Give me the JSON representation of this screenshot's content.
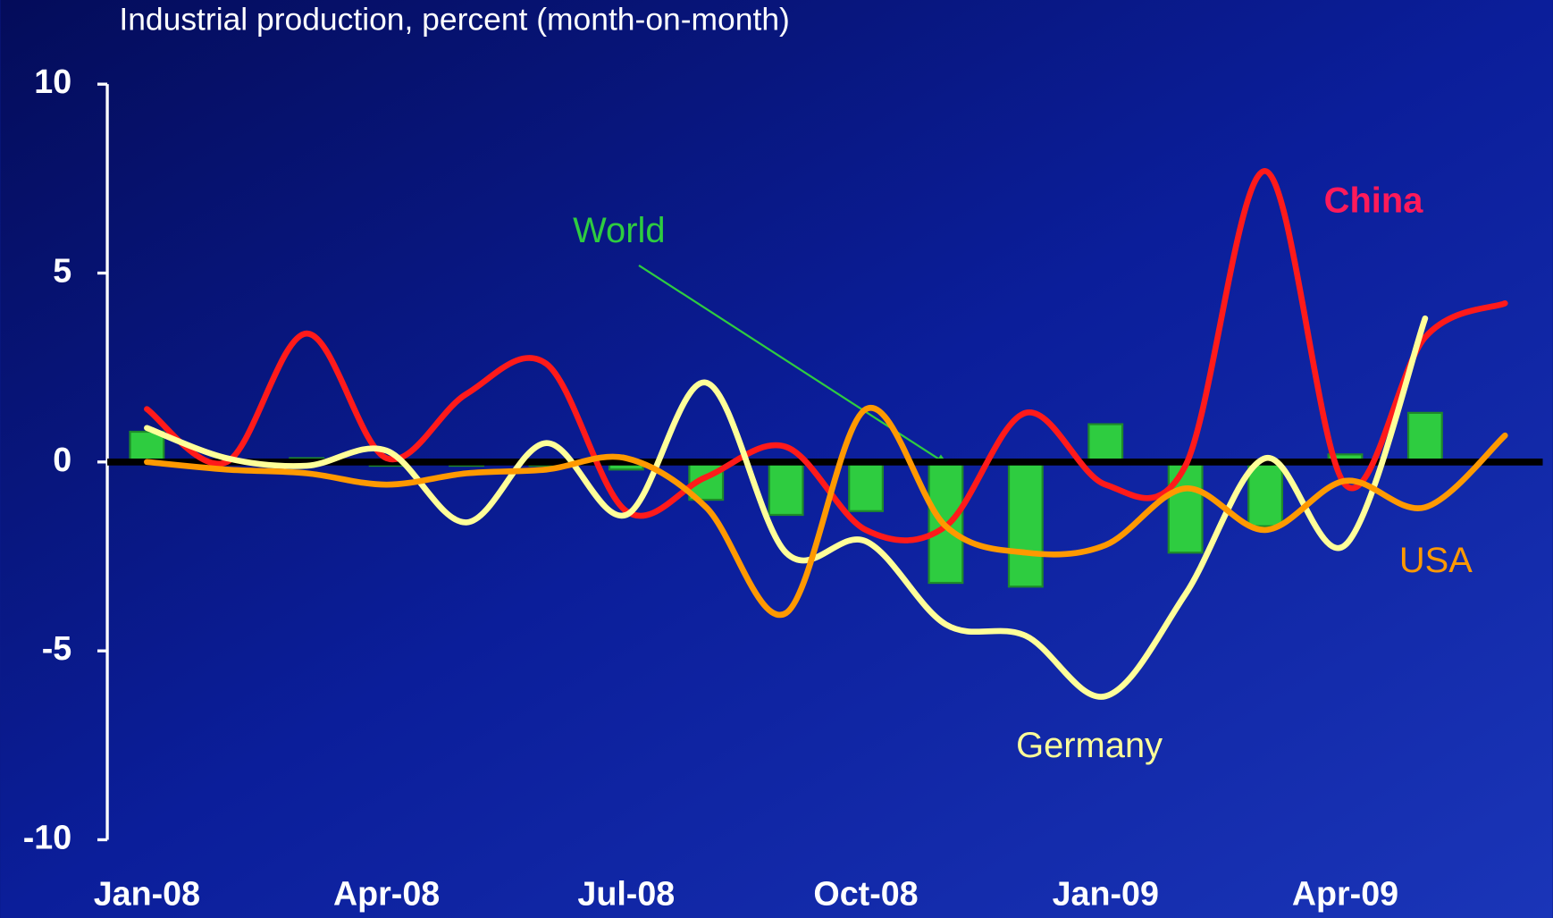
{
  "chart_data": {
    "type": "bar-line",
    "title": "Industrial production, percent (month-on-month)",
    "categories": [
      "Jan-08",
      null,
      null,
      "Apr-08",
      null,
      null,
      "Jul-08",
      null,
      null,
      "Oct-08",
      null,
      null,
      "Jan-09",
      null,
      null,
      "Apr-09",
      null,
      null
    ],
    "ylim": [
      -10,
      10
    ],
    "yticks": [
      -10,
      -5,
      0,
      5,
      10
    ],
    "series": [
      {
        "name": "World",
        "type": "bar",
        "color": "#2ecc40",
        "values": [
          0.8,
          0,
          0.1,
          -0.1,
          -0.1,
          -0.1,
          -0.2,
          -1.0,
          -1.4,
          -1.3,
          -3.2,
          -3.3,
          1.0,
          -2.4,
          -1.7,
          0.2,
          1.3,
          null
        ]
      },
      {
        "name": "China",
        "type": "line",
        "color": "#ff1a1a",
        "values": [
          1.4,
          0,
          3.4,
          0.1,
          1.8,
          2.6,
          -1.3,
          -0.4,
          0.4,
          -1.8,
          -1.7,
          1.3,
          -0.6,
          -0.1,
          7.7,
          -0.6,
          3.3,
          4.2
        ]
      },
      {
        "name": "Germany",
        "type": "line",
        "color": "#ffff99",
        "values": [
          0.9,
          0.1,
          -0.1,
          0.3,
          -1.6,
          0.5,
          -1.4,
          2.1,
          -2.4,
          -2.1,
          -4.3,
          -4.6,
          -6.2,
          -3.5,
          0.1,
          -2.2,
          3.8,
          null
        ]
      },
      {
        "name": "USA",
        "type": "line",
        "color": "#ff9900",
        "values": [
          0,
          -0.2,
          -0.3,
          -0.6,
          -0.3,
          -0.2,
          0.1,
          -1.2,
          -4.0,
          1.4,
          -1.7,
          -2.4,
          -2.2,
          -0.7,
          -1.8,
          -0.5,
          -1.2,
          0.7
        ]
      }
    ]
  }
}
